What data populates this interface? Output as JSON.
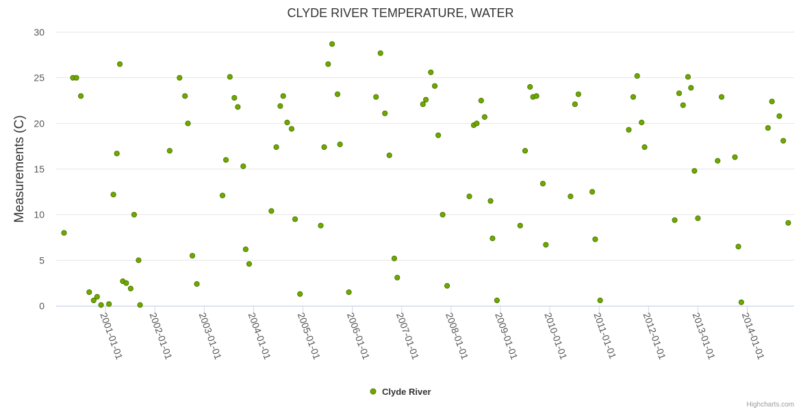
{
  "colors": {
    "marker_fill": "#70A800",
    "marker_stroke": "#4C7A00",
    "grid": "#E6E6E6",
    "axis": "#CCD6EB"
  },
  "credits": "Highcharts.com",
  "chart_data": {
    "type": "scatter",
    "title": "CLYDE RIVER TEMPERATURE, WATER",
    "ylabel": "Measurements (C)",
    "xlabel": "",
    "ylim": [
      0,
      30
    ],
    "yticks": [
      0,
      5,
      10,
      15,
      20,
      25,
      30
    ],
    "xlim": [
      2000.0,
      2014.95
    ],
    "xticks": [
      {
        "value": 2001.0,
        "label": "2001-01-01"
      },
      {
        "value": 2002.0,
        "label": "2002-01-01"
      },
      {
        "value": 2003.0,
        "label": "2003-01-01"
      },
      {
        "value": 2004.0,
        "label": "2004-01-01"
      },
      {
        "value": 2005.0,
        "label": "2005-01-01"
      },
      {
        "value": 2006.0,
        "label": "2006-01-01"
      },
      {
        "value": 2007.0,
        "label": "2007-01-01"
      },
      {
        "value": 2008.0,
        "label": "2008-01-01"
      },
      {
        "value": 2009.0,
        "label": "2009-01-01"
      },
      {
        "value": 2010.0,
        "label": "2010-01-01"
      },
      {
        "value": 2011.0,
        "label": "2011-01-01"
      },
      {
        "value": 2012.0,
        "label": "2012-01-01"
      },
      {
        "value": 2013.0,
        "label": "2013-01-01"
      },
      {
        "value": 2014.0,
        "label": "2014-01-01"
      }
    ],
    "grid": true,
    "legend_position": "bottom-center",
    "series": [
      {
        "name": "Clyde River",
        "points": [
          [
            2000.16,
            8.0
          ],
          [
            2000.34,
            25.0
          ],
          [
            2000.41,
            25.0
          ],
          [
            2000.5,
            23.0
          ],
          [
            2000.67,
            1.5
          ],
          [
            2000.76,
            0.6
          ],
          [
            2000.83,
            1.0
          ],
          [
            2000.91,
            0.1
          ],
          [
            2001.07,
            0.2
          ],
          [
            2001.16,
            12.2
          ],
          [
            2001.23,
            16.7
          ],
          [
            2001.29,
            26.5
          ],
          [
            2001.35,
            2.7
          ],
          [
            2001.42,
            2.5
          ],
          [
            2001.51,
            1.9
          ],
          [
            2001.58,
            10.0
          ],
          [
            2001.67,
            5.0
          ],
          [
            2001.7,
            0.1
          ],
          [
            2002.3,
            17.0
          ],
          [
            2002.5,
            25.0
          ],
          [
            2002.61,
            23.0
          ],
          [
            2002.67,
            20.0
          ],
          [
            2002.76,
            5.5
          ],
          [
            2002.85,
            2.4
          ],
          [
            2003.37,
            12.1
          ],
          [
            2003.44,
            16.0
          ],
          [
            2003.52,
            25.1
          ],
          [
            2003.61,
            22.8
          ],
          [
            2003.68,
            21.8
          ],
          [
            2003.79,
            15.3
          ],
          [
            2003.84,
            6.2
          ],
          [
            2003.91,
            4.6
          ],
          [
            2004.36,
            10.4
          ],
          [
            2004.46,
            17.4
          ],
          [
            2004.54,
            21.9
          ],
          [
            2004.6,
            23.0
          ],
          [
            2004.68,
            20.1
          ],
          [
            2004.77,
            19.4
          ],
          [
            2004.84,
            9.5
          ],
          [
            2004.94,
            1.3
          ],
          [
            2005.36,
            8.8
          ],
          [
            2005.43,
            17.4
          ],
          [
            2005.51,
            26.5
          ],
          [
            2005.59,
            28.7
          ],
          [
            2005.7,
            23.2
          ],
          [
            2005.75,
            17.7
          ],
          [
            2005.93,
            1.5
          ],
          [
            2006.48,
            22.9
          ],
          [
            2006.57,
            27.7
          ],
          [
            2006.66,
            21.1
          ],
          [
            2006.75,
            16.5
          ],
          [
            2006.85,
            5.2
          ],
          [
            2006.91,
            3.1
          ],
          [
            2007.43,
            22.1
          ],
          [
            2007.49,
            22.6
          ],
          [
            2007.59,
            25.6
          ],
          [
            2007.67,
            24.1
          ],
          [
            2007.74,
            18.7
          ],
          [
            2007.83,
            10.0
          ],
          [
            2007.92,
            2.2
          ],
          [
            2008.37,
            12.0
          ],
          [
            2008.46,
            19.8
          ],
          [
            2008.52,
            20.0
          ],
          [
            2008.61,
            22.5
          ],
          [
            2008.68,
            20.7
          ],
          [
            2008.8,
            11.5
          ],
          [
            2008.84,
            7.4
          ],
          [
            2008.93,
            0.6
          ],
          [
            2009.4,
            8.8
          ],
          [
            2009.5,
            17.0
          ],
          [
            2009.6,
            24.0
          ],
          [
            2009.66,
            22.9
          ],
          [
            2009.73,
            23.0
          ],
          [
            2009.86,
            13.4
          ],
          [
            2009.92,
            6.7
          ],
          [
            2010.42,
            12.0
          ],
          [
            2010.51,
            22.1
          ],
          [
            2010.58,
            23.2
          ],
          [
            2010.86,
            12.5
          ],
          [
            2010.92,
            7.3
          ],
          [
            2011.02,
            0.6
          ],
          [
            2011.6,
            19.3
          ],
          [
            2011.69,
            22.9
          ],
          [
            2011.77,
            25.2
          ],
          [
            2011.86,
            20.1
          ],
          [
            2011.92,
            17.4
          ],
          [
            2012.53,
            9.4
          ],
          [
            2012.62,
            23.3
          ],
          [
            2012.7,
            22.0
          ],
          [
            2012.8,
            25.1
          ],
          [
            2012.86,
            23.9
          ],
          [
            2012.93,
            14.8
          ],
          [
            2013.0,
            9.6
          ],
          [
            2013.4,
            15.9
          ],
          [
            2013.48,
            22.9
          ],
          [
            2013.75,
            16.3
          ],
          [
            2013.82,
            6.5
          ],
          [
            2013.88,
            0.4
          ],
          [
            2014.42,
            19.5
          ],
          [
            2014.5,
            22.4
          ],
          [
            2014.65,
            20.8
          ],
          [
            2014.73,
            18.1
          ],
          [
            2014.83,
            9.1
          ]
        ]
      }
    ]
  }
}
